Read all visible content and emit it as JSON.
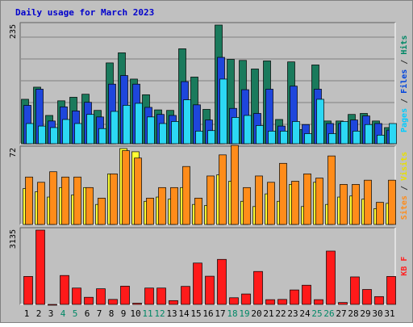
{
  "chart_data": {
    "type": "bar",
    "title": "Daily usage for March 2023",
    "days": [
      "1",
      "2",
      "3",
      "4",
      "5",
      "6",
      "7",
      "8",
      "9",
      "10",
      "11",
      "12",
      "13",
      "14",
      "15",
      "16",
      "17",
      "18",
      "19",
      "20",
      "21",
      "22",
      "23",
      "24",
      "25",
      "26",
      "27",
      "28",
      "29",
      "30",
      "31"
    ],
    "weekend_days": [
      "4",
      "5",
      "11",
      "12",
      "18",
      "19",
      "25",
      "26"
    ],
    "panels": [
      {
        "id": "top",
        "ymax_label": "235",
        "ymax": 235,
        "right_labels": [
          {
            "text": "Pages",
            "color": "#00ccff"
          },
          {
            "text": " / ",
            "color": "#333333"
          },
          {
            "text": "Files",
            "color": "#0044dd"
          },
          {
            "text": " / ",
            "color": "#333333"
          },
          {
            "text": "Hits",
            "color": "#008866"
          }
        ],
        "series": [
          {
            "name": "Hits",
            "color": "#1a7a5c",
            "values": [
              88,
              112,
              56,
              85,
              92,
              98,
              66,
              160,
              180,
              128,
              97,
              67,
              66,
              188,
              132,
              68,
              235,
              167,
              165,
              148,
              164,
              48,
              162,
              28,
              156,
              45,
              45,
              58,
              60,
              45,
              32
            ]
          },
          {
            "name": "Files",
            "color": "#1e46dc",
            "values": [
              76,
              108,
              45,
              73,
              65,
              82,
              53,
              118,
              135,
              118,
              72,
              58,
              56,
              123,
              77,
              47,
              171,
              70,
              107,
              60,
              108,
              35,
              114,
              38,
              108,
              40,
              40,
              47,
              55,
              40,
              27
            ]
          },
          {
            "name": "Pages",
            "color": "#2cd8f4",
            "values": [
              40,
              35,
              32,
              48,
              40,
              58,
              30,
              64,
              76,
              80,
              53,
              40,
              44,
              87,
              25,
              26,
              128,
              52,
              56,
              36,
              25,
              25,
              44,
              20,
              88,
              20,
              44,
              25,
              38,
              17,
              40
            ]
          }
        ]
      },
      {
        "id": "middle",
        "ymax_label": "72",
        "ymax": 72,
        "right_labels": [
          {
            "text": "Sites",
            "color": "#ff8c1a"
          },
          {
            "text": " / ",
            "color": "#333333"
          },
          {
            "text": "Visits",
            "color": "#e8e000"
          }
        ],
        "series": [
          {
            "name": "Visits",
            "color": "#ffff33",
            "values": [
              34,
              31,
              26,
              35,
              28,
              35,
              19,
              48,
              72,
              69,
              22,
              26,
              24,
              35,
              19,
              18,
              47,
              41,
              22,
              17,
              29,
              22,
              38,
              17,
              40,
              19,
              26,
              27,
              24,
              15,
              20
            ]
          },
          {
            "name": "Sites",
            "color": "#ff8c1a",
            "values": [
              45,
              40,
              50,
              45,
              45,
              35,
              25,
              48,
              70,
              63,
              25,
              35,
              35,
              55,
              25,
              46,
              66,
              75,
              35,
              46,
              40,
              58,
              41,
              48,
              44,
              65,
              38,
              38,
              42,
              21,
              42
            ]
          }
        ]
      },
      {
        "id": "bottom",
        "ymax_label": "3135",
        "ymax": 3135,
        "right_labels": [
          {
            "text": "KB F",
            "color": "#ff2222"
          }
        ],
        "series": [
          {
            "name": "KB F",
            "color": "#ff1a1a",
            "values": [
              1180,
              3135,
              0,
              1220,
              690,
              300,
              660,
              210,
              770,
              50,
              690,
              690,
              160,
              760,
              1745,
              1190,
              1900,
              280,
              440,
              1390,
              200,
              210,
              610,
              810,
              200,
              2250,
              80,
              1160,
              630,
              330,
              1180
            ]
          }
        ]
      }
    ]
  },
  "colors": {
    "title_text": "#0000cc",
    "axis_text": "#000000",
    "weekend_text": "#008866",
    "frame_bg": "#c0c0c0",
    "panel_bg": "#c0c0c0",
    "grid": "#808080"
  }
}
